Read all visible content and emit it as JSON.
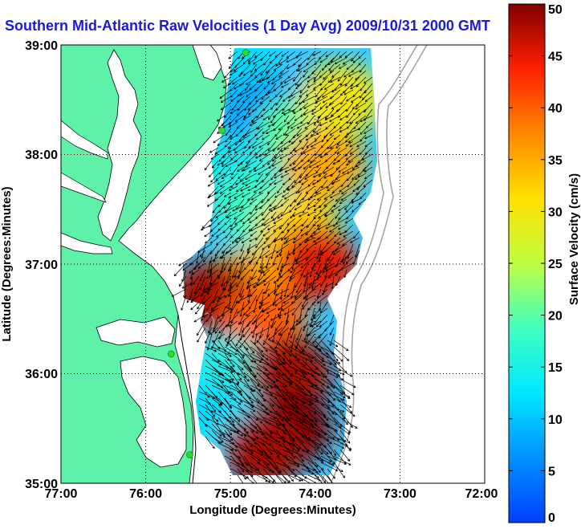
{
  "title": "Southern Mid-Atlantic Raw Velocities (1 Day Avg) 2009/10/31 2000 GMT",
  "map": {
    "lon_range": [
      -77,
      -72
    ],
    "lat_range": [
      35,
      39
    ],
    "xlabel": "Longitude (Degrees:Minutes)",
    "ylabel": "Latitude (Degrees:Minutes)",
    "x_ticks": [
      "77:00",
      "76:00",
      "75:00",
      "74:00",
      "73:00",
      "72:00"
    ],
    "y_ticks": [
      "35:00",
      "36:00",
      "37:00",
      "38:00",
      "39:00"
    ],
    "grid": "dotted",
    "colors": {
      "land": "#5ef2a8",
      "water": "#ffffff",
      "coast": "#000000",
      "bathymetry": "#a0a0a0",
      "vector": "#000000",
      "station": "#2adf2a"
    }
  },
  "colorbar": {
    "label": "Surface Velocity (cm/s)",
    "min": 0,
    "max": 50,
    "ticks": [
      "0",
      "5",
      "10",
      "15",
      "20",
      "25",
      "30",
      "35",
      "40",
      "45",
      "50"
    ],
    "colormap": "jet"
  },
  "chart_data": {
    "type": "heatmap",
    "title": "Southern Mid-Atlantic Raw Velocities (1 Day Avg) 2009/10/31 2000 GMT",
    "xlabel": "Longitude (Degrees:Minutes)",
    "ylabel": "Latitude (Degrees:Minutes)",
    "xlim": [
      -77,
      -72
    ],
    "ylim": [
      35,
      39
    ],
    "value_range": [
      0,
      50
    ],
    "regions": [
      {
        "lon": -74.9,
        "lat": 38.8,
        "speed": 12
      },
      {
        "lon": -74.6,
        "lat": 38.4,
        "speed": 8
      },
      {
        "lon": -74.2,
        "lat": 38.2,
        "speed": 20
      },
      {
        "lon": -73.9,
        "lat": 37.9,
        "speed": 35
      },
      {
        "lon": -73.7,
        "lat": 38.5,
        "speed": 30
      },
      {
        "lon": -75.0,
        "lat": 37.8,
        "speed": 14
      },
      {
        "lon": -74.7,
        "lat": 37.5,
        "speed": 18
      },
      {
        "lon": -74.2,
        "lat": 37.3,
        "speed": 32
      },
      {
        "lon": -74.0,
        "lat": 37.0,
        "speed": 45
      },
      {
        "lon": -74.8,
        "lat": 36.8,
        "speed": 35
      },
      {
        "lon": -75.2,
        "lat": 36.7,
        "speed": 48
      },
      {
        "lon": -74.6,
        "lat": 36.5,
        "speed": 40
      },
      {
        "lon": -75.0,
        "lat": 36.0,
        "speed": 15
      },
      {
        "lon": -75.2,
        "lat": 35.6,
        "speed": 12
      },
      {
        "lon": -74.3,
        "lat": 36.0,
        "speed": 48
      },
      {
        "lon": -74.3,
        "lat": 35.5,
        "speed": 50
      },
      {
        "lon": -74.6,
        "lat": 35.3,
        "speed": 48
      }
    ],
    "stations": [
      {
        "lon": -74.82,
        "lat": 38.93
      },
      {
        "lon": -75.1,
        "lat": 38.22
      },
      {
        "lon": -75.7,
        "lat": 36.18
      },
      {
        "lon": -75.48,
        "lat": 35.26
      }
    ]
  }
}
